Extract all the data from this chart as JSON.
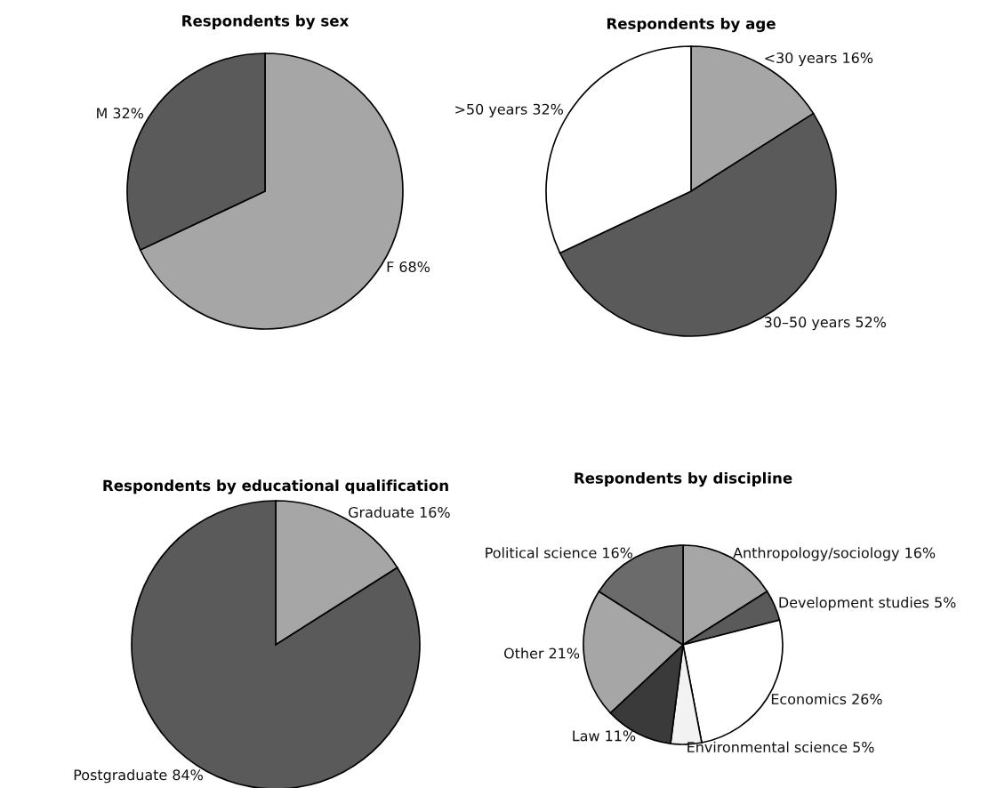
{
  "chart_data": [
    {
      "type": "pie",
      "title": "Respondents by sex",
      "categories": [
        "F",
        "M"
      ],
      "values": [
        68,
        32
      ],
      "value_labels": [
        "68%",
        "32%"
      ],
      "colors": [
        "#a6a6a6",
        "#5a5a5a"
      ]
    },
    {
      "type": "pie",
      "title": "Respondents by age",
      "categories": [
        "<30 years",
        "30–50 years",
        ">50 years"
      ],
      "values": [
        16,
        52,
        32
      ],
      "value_labels": [
        "16%",
        "52%",
        "32%"
      ],
      "colors": [
        "#a6a6a6",
        "#5a5a5a",
        "#ffffff"
      ]
    },
    {
      "type": "pie",
      "title": "Respondents by educational qualification",
      "categories": [
        "Graduate",
        "Postgraduate"
      ],
      "values": [
        16,
        84
      ],
      "value_labels": [
        "16%",
        "84%"
      ],
      "colors": [
        "#a6a6a6",
        "#5a5a5a"
      ]
    },
    {
      "type": "pie",
      "title": "Respondents by discipline",
      "categories": [
        "Anthropology/sociology",
        "Development studies",
        "Economics",
        "Environmental science",
        "Law",
        "Other",
        "Political science"
      ],
      "values": [
        16,
        5,
        26,
        5,
        11,
        21,
        16
      ],
      "value_labels": [
        "16%",
        "5%",
        "26%",
        "5%",
        "11%",
        "21%",
        "16%"
      ],
      "colors": [
        "#a6a6a6",
        "#5a5a5a",
        "#ffffff",
        "#f2f2f2",
        "#3a3a3a",
        "#a6a6a6",
        "#6b6b6b"
      ]
    }
  ]
}
